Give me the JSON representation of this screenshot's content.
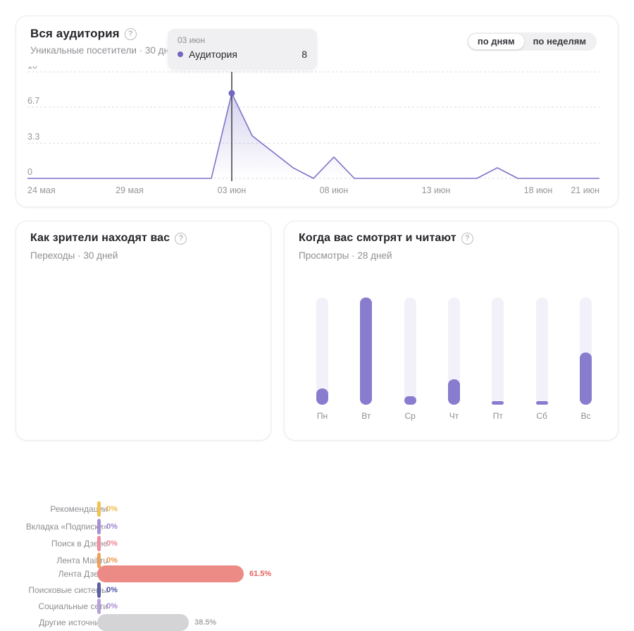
{
  "audience_card": {
    "title": "Вся аудитория",
    "subtitle": "Уникальные посетители · 30 дней",
    "toggle": {
      "options": [
        {
          "label": "по дням",
          "active": true
        },
        {
          "label": "по неделям",
          "active": false
        }
      ]
    },
    "tooltip": {
      "date": "03 июн",
      "series_label": "Аудитория",
      "value": "8",
      "dot_color": "#7166c2"
    }
  },
  "sources_card": {
    "title": "Как зрители находят вас",
    "subtitle": "Переходы · 30 дней"
  },
  "schedule_card": {
    "title": "Когда вас смотрят и читают",
    "subtitle": "Просмотры · 28 дней"
  },
  "chart_data": [
    {
      "type": "line",
      "title": "Вся аудитория",
      "ylabel": "Уникальные посетители",
      "x": [
        "24 мая",
        "25 мая",
        "26 мая",
        "27 мая",
        "28 мая",
        "29 мая",
        "30 мая",
        "31 мая",
        "01 июн",
        "02 июн",
        "03 июн",
        "04 июн",
        "05 июн",
        "06 июн",
        "07 июн",
        "08 июн",
        "09 июн",
        "10 июн",
        "11 июн",
        "12 июн",
        "13 июн",
        "14 июн",
        "15 июн",
        "16 июн",
        "17 июн",
        "18 июн",
        "19 июн",
        "20 июн",
        "21 июн"
      ],
      "values": [
        0,
        0,
        0,
        0,
        0,
        0,
        0,
        0,
        0,
        0,
        8,
        4,
        2.5,
        1,
        0,
        2,
        0,
        0,
        0,
        0,
        0,
        0,
        0,
        1,
        0,
        0,
        0,
        0,
        0
      ],
      "ylim": [
        0,
        10
      ],
      "yticks": [
        {
          "label": "10",
          "value": 10
        },
        {
          "label": "6.7",
          "value": 6.7
        },
        {
          "label": "3.3",
          "value": 3.3
        },
        {
          "label": "0",
          "value": 0
        }
      ],
      "xticks": [
        {
          "label": "24 мая",
          "index": 0
        },
        {
          "label": "29 мая",
          "index": 5
        },
        {
          "label": "03 июн",
          "index": 10
        },
        {
          "label": "08 июн",
          "index": 15
        },
        {
          "label": "13 июн",
          "index": 20
        },
        {
          "label": "18 июн",
          "index": 25
        },
        {
          "label": "21 июн",
          "index": 28
        }
      ],
      "grid": true,
      "line_color": "#7b72c9",
      "area_color": "#7b72c9",
      "cursor_color": "#3f3f45",
      "dot_color": "#7166c2",
      "highlight": {
        "index": 10,
        "date": "03 июн",
        "value": 8
      }
    },
    {
      "type": "bar",
      "orientation": "horizontal",
      "title": "Как зрители находят вас",
      "categories": [
        "Рекомендации",
        "Вкладка «Подписки»",
        "Поиск в Дзене",
        "Лента Mail.ru",
        "Лента Дзена",
        "Поисковые системы",
        "Социальные сети",
        "Другие источники"
      ],
      "values": [
        0,
        0,
        0,
        0,
        61.5,
        0,
        0,
        38.5
      ],
      "value_labels": [
        "0%",
        "0%",
        "0%",
        "0%",
        "61.5%",
        "0%",
        "0%",
        "38.5%"
      ],
      "bar_colors": [
        "#f3c24f",
        "#a88fd6",
        "#ee8d9f",
        "#f0a159",
        "#ec8a85",
        "#5d5fa3",
        "#b8a2de",
        "#d4d4d6"
      ],
      "value_colors": [
        "#edba4a",
        "#9f83d2",
        "#ec8396",
        "#eb9848",
        "#e2605c",
        "#4d50a8",
        "#a98bd8",
        "#a9a9ad"
      ],
      "xlim": [
        0,
        100
      ]
    },
    {
      "type": "bar",
      "orientation": "vertical",
      "title": "Когда вас смотрят и читают",
      "categories": [
        "Пн",
        "Вт",
        "Ср",
        "Чт",
        "Пт",
        "Сб",
        "Вс"
      ],
      "values_pct_of_max": [
        15,
        100,
        8,
        24,
        3,
        3,
        49
      ],
      "fill_color": "#877cce",
      "track_color": "#f2f1f9"
    }
  ]
}
